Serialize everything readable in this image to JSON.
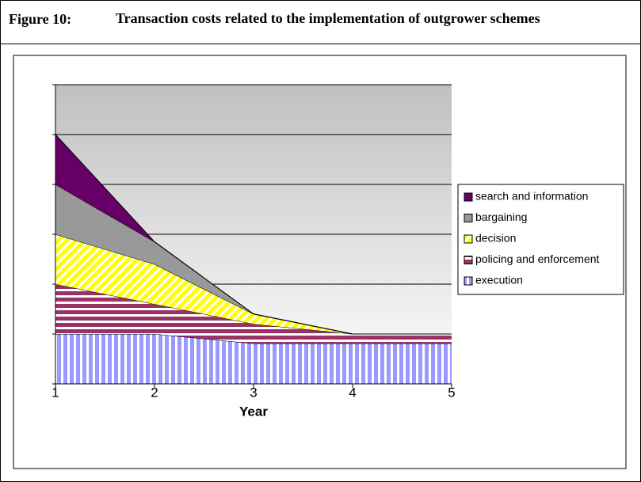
{
  "chart_data": {
    "type": "stacked_area",
    "figure_label": "Figure 10:",
    "title": "Transaction costs related to the implementation of outgrower schemes",
    "x_label": "Year",
    "x": [
      1,
      2,
      3,
      4,
      5
    ],
    "xlim": [
      1,
      5
    ],
    "xticks": [
      1,
      2,
      3,
      4,
      5
    ],
    "ylim": [
      0,
      6
    ],
    "yticks": [
      0,
      1,
      2,
      3,
      4,
      5,
      6
    ],
    "grid": true,
    "legend": "right",
    "series": [
      {
        "name": "execution",
        "color": "#9999ff",
        "pattern": "vertical",
        "values": [
          1.0,
          1.0,
          0.81,
          0.81,
          0.81
        ]
      },
      {
        "name": "policing and enforcement",
        "color": "#993366",
        "pattern": "horizontal",
        "values": [
          1.0,
          0.6,
          0.39,
          0.19,
          0.19
        ]
      },
      {
        "name": "decision",
        "color": "#ffff00",
        "pattern": "diagonal",
        "values": [
          1.0,
          0.8,
          0.2,
          0,
          0
        ]
      },
      {
        "name": "bargaining",
        "color": "#999999",
        "pattern": "solid",
        "values": [
          1.0,
          0.45,
          0,
          0,
          0
        ]
      },
      {
        "name": "search and information",
        "color": "#660066",
        "pattern": "solid",
        "values": [
          1.0,
          0,
          0,
          0,
          0
        ]
      }
    ]
  }
}
